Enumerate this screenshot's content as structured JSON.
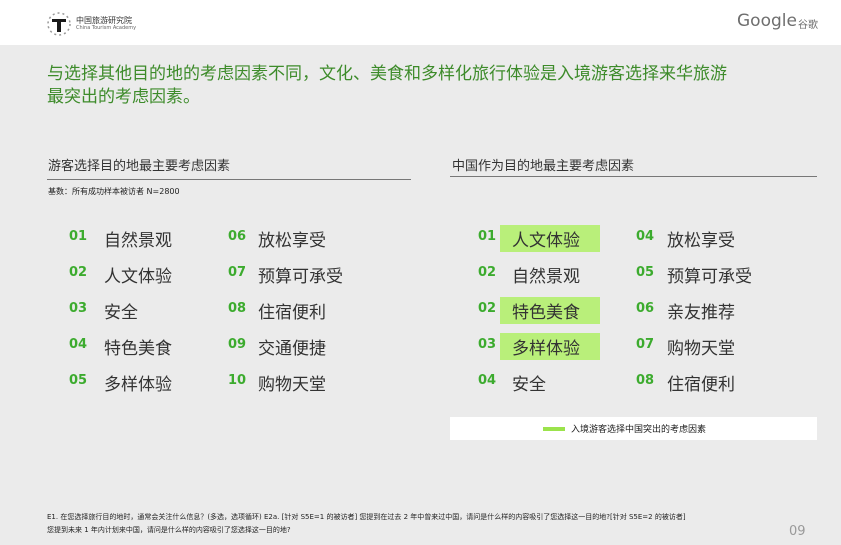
{
  "header": {
    "logo_text": "中国旅游研究院",
    "logo_subtext": "China Tourism Academy",
    "brand": "Google",
    "brand_cn": "谷歌"
  },
  "headline": [
    "与选择其他目的地的考虑因素不同，文化、美食和多样化旅行体验是入境游客选择来华旅游",
    "最突出的考虑因素。"
  ],
  "left_panel": {
    "title": "游客选择目的地最主要考虑因素",
    "base": "基数：所有成功样本被访者 N=2800",
    "items": [
      {
        "rank": "01",
        "label": "自然景观"
      },
      {
        "rank": "02",
        "label": "人文体验"
      },
      {
        "rank": "03",
        "label": "安全"
      },
      {
        "rank": "04",
        "label": "特色美食"
      },
      {
        "rank": "05",
        "label": "多样体验"
      },
      {
        "rank": "06",
        "label": "放松享受"
      },
      {
        "rank": "07",
        "label": "预算可承受"
      },
      {
        "rank": "08",
        "label": "住宿便利"
      },
      {
        "rank": "09",
        "label": "交通便捷"
      },
      {
        "rank": "10",
        "label": "购物天堂"
      }
    ]
  },
  "right_panel": {
    "title": "中国作为目的地最主要考虑因素",
    "items": [
      {
        "rank": "01",
        "label": "人文体验",
        "highlighted": true
      },
      {
        "rank": "02",
        "label": "自然景观",
        "highlighted": false
      },
      {
        "rank": "02",
        "label": "特色美食",
        "highlighted": true
      },
      {
        "rank": "03",
        "label": "多样体验",
        "highlighted": true
      },
      {
        "rank": "04",
        "label": "安全",
        "highlighted": false
      },
      {
        "rank": "04",
        "label": "放松享受",
        "highlighted": false
      },
      {
        "rank": "05",
        "label": "预算可承受",
        "highlighted": false
      },
      {
        "rank": "06",
        "label": "亲友推荐",
        "highlighted": false
      },
      {
        "rank": "07",
        "label": "购物天堂",
        "highlighted": false
      },
      {
        "rank": "08",
        "label": "住宿便利",
        "highlighted": false
      }
    ],
    "legend": "入境游客选择中国突出的考虑因素"
  },
  "footnote": [
    "E1. 在您选择旅行目的地时，通常会关注什么信息？(多选，选项循环) E2a. [针对 S5E=1 的被访者] 您提到在过去 2 年中曾来过中国，请问是什么样的内容吸引了您选择这一目的地?[针对 S5E=2 的被访者]",
    "您提到未来 1 年内计划来中国，请问是什么样的内容吸引了您选择这一目的地?"
  ],
  "page_number": "09"
}
